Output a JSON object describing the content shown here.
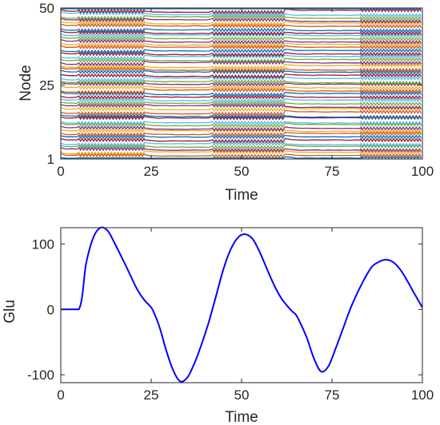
{
  "chart_data": [
    {
      "type": "line",
      "xlabel": "Time",
      "ylabel": "Node",
      "xlim": [
        0,
        100
      ],
      "ylim": [
        1,
        50
      ],
      "xticks": [
        "0",
        "25",
        "50",
        "75",
        "100"
      ],
      "yticks": [
        "1",
        "25",
        "50"
      ],
      "grid": false,
      "series_count": 50,
      "segments": [
        {
          "x": [
            0,
            5
          ],
          "state": "steady"
        },
        {
          "x": [
            5,
            23
          ],
          "state": "oscillating"
        },
        {
          "x": [
            23,
            42
          ],
          "state": "steady"
        },
        {
          "x": [
            42,
            62
          ],
          "state": "oscillating"
        },
        {
          "x": [
            62,
            83
          ],
          "state": "steady"
        },
        {
          "x": [
            83,
            100
          ],
          "state": "oscillating"
        }
      ],
      "colors": [
        "#0072bd",
        "#d95319",
        "#edb120",
        "#7e2f8e",
        "#77ac30",
        "#4dbeee",
        "#a2142f"
      ]
    },
    {
      "type": "line",
      "xlabel": "Time",
      "ylabel": "Glu",
      "xlim": [
        0,
        100
      ],
      "ylim": [
        -112,
        125
      ],
      "xticks": [
        "0",
        "25",
        "50",
        "75",
        "100"
      ],
      "yticks": [
        "-100",
        "0",
        "100"
      ],
      "grid": false,
      "series": [
        {
          "color": "#0000ff",
          "x": [
            0,
            5,
            7,
            9,
            11,
            13,
            15,
            17,
            19,
            21,
            23,
            25,
            26,
            27,
            28,
            29,
            31,
            33,
            35,
            37,
            39,
            41,
            43,
            45,
            47,
            49,
            51,
            53,
            55,
            57,
            59,
            61,
            63,
            64,
            65,
            66,
            68,
            70,
            72,
            74,
            76,
            78,
            80,
            82,
            84,
            86,
            88,
            90,
            92,
            94,
            96,
            98,
            100
          ],
          "y": [
            0,
            0,
            70,
            110,
            125,
            120,
            100,
            78,
            55,
            32,
            15,
            3,
            -8,
            -22,
            -40,
            -60,
            -92,
            -110,
            -104,
            -82,
            -52,
            -18,
            22,
            62,
            92,
            110,
            115,
            108,
            88,
            62,
            37,
            17,
            3,
            -3,
            -8,
            -18,
            -43,
            -75,
            -95,
            -87,
            -60,
            -30,
            0,
            25,
            47,
            65,
            73,
            76,
            72,
            60,
            42,
            22,
            3
          ]
        }
      ]
    }
  ]
}
